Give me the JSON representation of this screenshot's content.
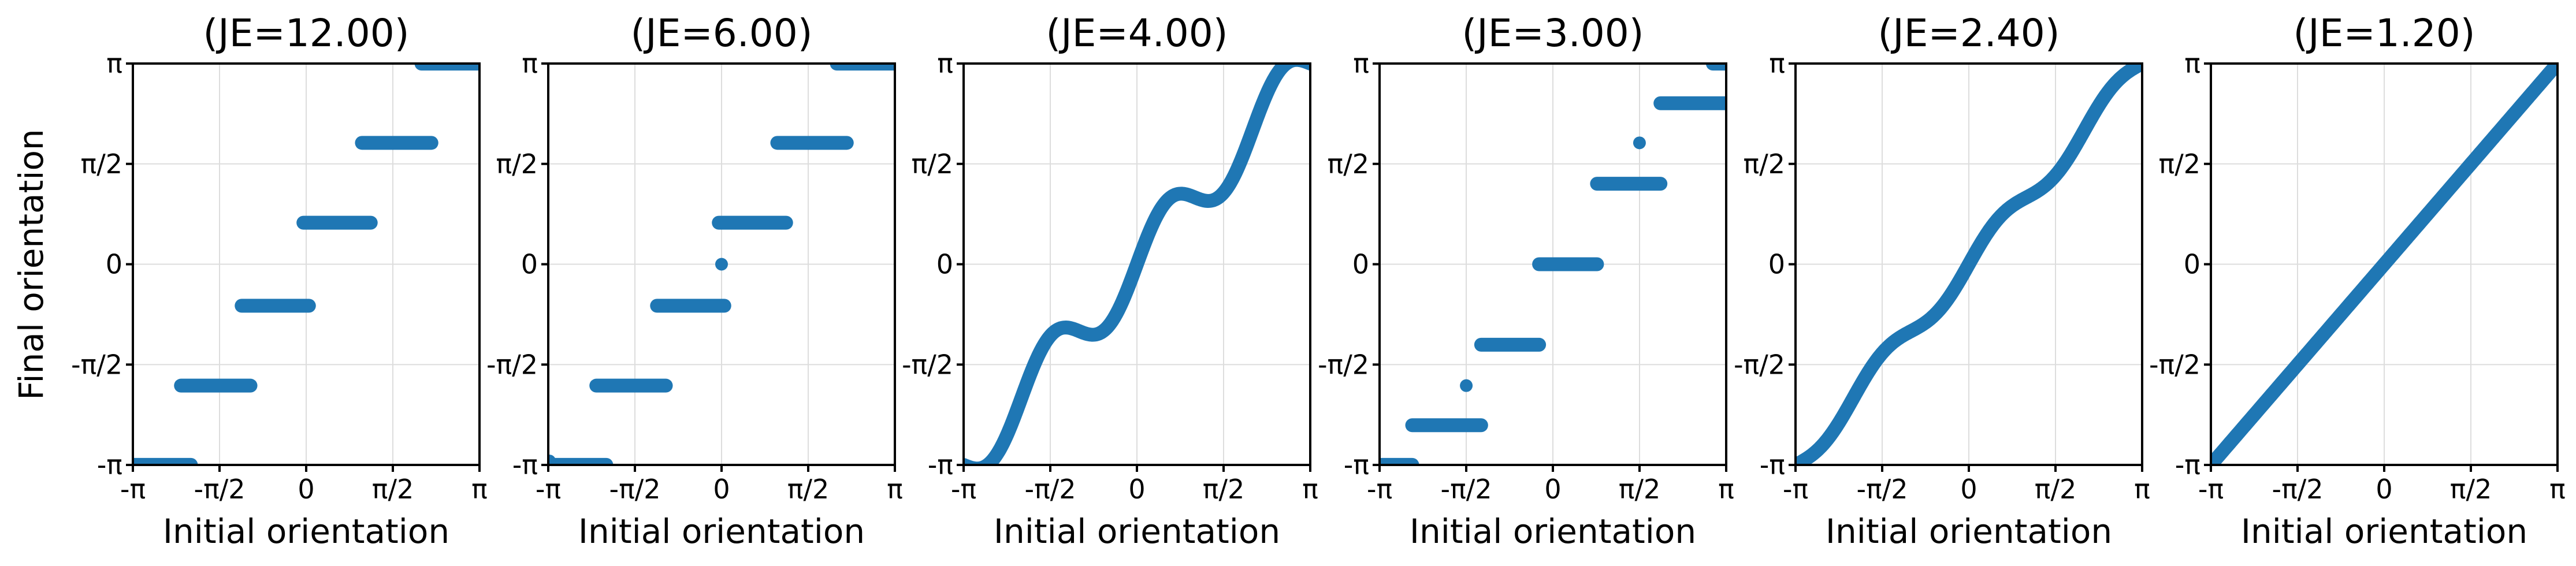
{
  "figure": {
    "ylabel": "Final orientation",
    "xlabel": "Initial orientation"
  },
  "chart_data": [
    {
      "type": "scatter",
      "title": "(JE=12.00)",
      "xlabel": "Initial orientation",
      "ylabel": "Final orientation",
      "xticks": [
        "-π",
        "-π/2",
        "0",
        "π/2",
        "π"
      ],
      "yticks": [
        "-π",
        "-π/2",
        "0",
        "π/2",
        "π"
      ],
      "xlim": [
        -3.1416,
        3.1416
      ],
      "ylim": [
        -3.1416,
        3.1416
      ],
      "grid": true,
      "color": "#1f77b4",
      "series": [
        {
          "segments": [
            {
              "x": [
                -3.14,
                -2.09
              ],
              "y": -3.14
            },
            {
              "x": [
                -2.27,
                -1.01
              ],
              "y": -1.9
            },
            {
              "x": [
                -1.17,
                0.05
              ],
              "y": -0.65
            },
            {
              "x": [
                -0.05,
                1.17
              ],
              "y": 0.65
            },
            {
              "x": [
                1.01,
                2.27
              ],
              "y": 1.9
            },
            {
              "x": [
                2.09,
                3.14
              ],
              "y": 3.14
            }
          ]
        }
      ]
    },
    {
      "type": "scatter",
      "title": "(JE=6.00)",
      "xlabel": "Initial orientation",
      "ylabel": "",
      "xticks": [
        "-π",
        "-π/2",
        "0",
        "π/2",
        "π"
      ],
      "yticks": [
        "-π",
        "-π/2",
        "0",
        "π/2",
        "π"
      ],
      "xlim": [
        -3.1416,
        3.1416
      ],
      "ylim": [
        -3.1416,
        3.1416
      ],
      "grid": true,
      "color": "#1f77b4",
      "series": [
        {
          "segments": [
            {
              "x": [
                -3.14,
                -2.09
              ],
              "y": -3.14
            },
            {
              "x": [
                -2.27,
                -1.01
              ],
              "y": -1.9
            },
            {
              "x": [
                -1.17,
                0.05
              ],
              "y": -0.65
            },
            {
              "x": [
                -0.05,
                1.17
              ],
              "y": 0.65
            },
            {
              "x": [
                1.01,
                2.27
              ],
              "y": 1.9
            },
            {
              "x": [
                2.09,
                3.14
              ],
              "y": 3.14
            }
          ],
          "points": [
            {
              "x": 0.0,
              "y": 0.0
            },
            {
              "x": -3.12,
              "y": -3.08
            }
          ]
        }
      ]
    },
    {
      "type": "scatter",
      "title": "(JE=4.00)",
      "xlabel": "Initial orientation",
      "ylabel": "",
      "xticks": [
        "-π",
        "-π/2",
        "0",
        "π/2",
        "π"
      ],
      "yticks": [
        "-π",
        "-π/2",
        "0",
        "π/2",
        "π"
      ],
      "xlim": [
        -3.1416,
        3.1416
      ],
      "ylim": [
        -3.1416,
        3.1416
      ],
      "grid": true,
      "color": "#1f77b4",
      "series": [
        {
          "curve": {
            "amplitude": 0.45,
            "frequency": 3
          }
        }
      ]
    },
    {
      "type": "scatter",
      "title": "(JE=3.00)",
      "xlabel": "Initial orientation",
      "ylabel": "",
      "xticks": [
        "-π",
        "-π/2",
        "0",
        "π/2",
        "π"
      ],
      "yticks": [
        "-π",
        "-π/2",
        "0",
        "π/2",
        "π"
      ],
      "xlim": [
        -3.1416,
        3.1416
      ],
      "ylim": [
        -3.1416,
        3.1416
      ],
      "grid": true,
      "color": "#1f77b4",
      "series": [
        {
          "segments": [
            {
              "x": [
                -3.14,
                -2.55
              ],
              "y": -3.14
            },
            {
              "x": [
                -2.55,
                -1.3
              ],
              "y": -2.52
            },
            {
              "x": [
                -1.3,
                -0.25
              ],
              "y": -1.26
            },
            {
              "x": [
                -0.25,
                0.8
              ],
              "y": 0.0
            },
            {
              "x": [
                0.8,
                1.95
              ],
              "y": 1.26
            },
            {
              "x": [
                1.95,
                3.14
              ],
              "y": 2.52
            },
            {
              "x": [
                2.9,
                3.14
              ],
              "y": 3.14
            }
          ],
          "points": [
            {
              "x": -1.57,
              "y": -1.9
            },
            {
              "x": 1.57,
              "y": 1.9
            }
          ]
        }
      ]
    },
    {
      "type": "scatter",
      "title": "(JE=2.40)",
      "xlabel": "Initial orientation",
      "ylabel": "",
      "xticks": [
        "-π",
        "-π/2",
        "0",
        "π/2",
        "π"
      ],
      "yticks": [
        "-π",
        "-π/2",
        "0",
        "π/2",
        "π"
      ],
      "xlim": [
        -3.1416,
        3.1416
      ],
      "ylim": [
        -3.1416,
        3.1416
      ],
      "grid": true,
      "color": "#1f77b4",
      "series": [
        {
          "curve": {
            "amplitude": 0.18,
            "frequency": 3
          }
        }
      ]
    },
    {
      "type": "scatter",
      "title": "(JE=1.20)",
      "xlabel": "Initial orientation",
      "ylabel": "",
      "xticks": [
        "-π",
        "-π/2",
        "0",
        "π/2",
        "π"
      ],
      "yticks": [
        "-π",
        "-π/2",
        "0",
        "π/2",
        "π"
      ],
      "xlim": [
        -3.1416,
        3.1416
      ],
      "ylim": [
        -3.1416,
        3.1416
      ],
      "grid": true,
      "color": "#1f77b4",
      "series": [
        {
          "curve": {
            "amplitude": 0.0,
            "frequency": 3
          }
        }
      ]
    }
  ]
}
